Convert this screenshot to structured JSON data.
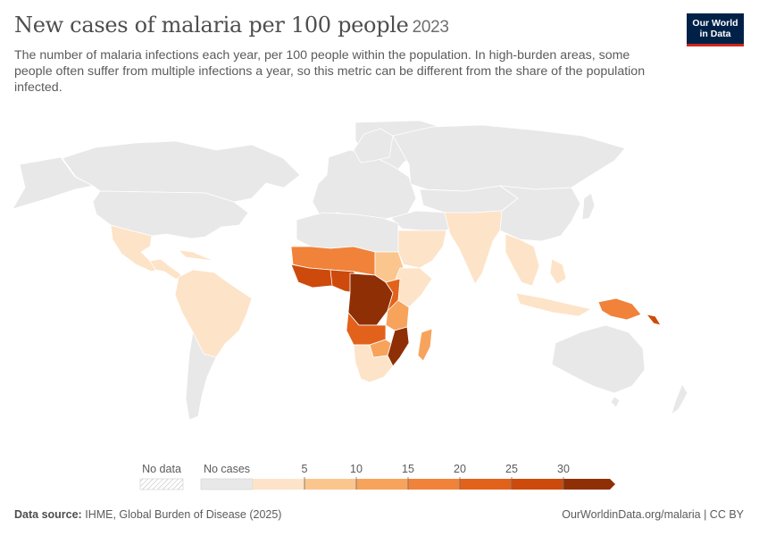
{
  "title": "New cases of malaria per 100 people",
  "year": "2023",
  "subtitle": "The number of malaria infections each year, per 100 people within the population. In high-burden areas, some people often suffer from multiple infections a year, so this metric can be different from the share of the population infected.",
  "logo": {
    "line1": "Our World",
    "line2": "in Data",
    "bg_color": "#002147",
    "accent_color": "#ce261e"
  },
  "legend": {
    "no_data_label": "No data",
    "no_cases_label": "No cases",
    "ticks": [
      "5",
      "10",
      "15",
      "20",
      "25",
      "30"
    ],
    "colors": [
      "#e8e8e8",
      "#fde3c8",
      "#fbc58e",
      "#f7a35c",
      "#f0823a",
      "#e2621b",
      "#cd4a0c",
      "#8f2f05"
    ]
  },
  "footer": {
    "source_label": "Data source:",
    "source_text": "IHME, Global Burden of Disease (2025)",
    "right_text": "OurWorldinData.org/malaria | CC BY"
  },
  "chart_data": {
    "type": "choropleth",
    "metric": "New cases of malaria per 100 people",
    "year": 2023,
    "scale_bins": [
      0,
      5,
      10,
      15,
      20,
      25,
      30
    ],
    "regions": [
      {
        "name": "Central Africa (DRC region)",
        "bin": "30+"
      },
      {
        "name": "Mozambique",
        "bin": "30+"
      },
      {
        "name": "Coastal West Africa",
        "bin": "25-30"
      },
      {
        "name": "Nigeria",
        "bin": "25-30"
      },
      {
        "name": "Sahel West Africa",
        "bin": "20-25"
      },
      {
        "name": "Angola / Zambia",
        "bin": "20-25"
      },
      {
        "name": "Uganda / Burundi / Rwanda",
        "bin": "20-25"
      },
      {
        "name": "Papua New Guinea",
        "bin": "20-25"
      },
      {
        "name": "Madagascar",
        "bin": "15-20"
      },
      {
        "name": "Tanzania",
        "bin": "15-20"
      },
      {
        "name": "Malawi / Zimbabwe",
        "bin": "10-15"
      },
      {
        "name": "Ethiopia / Kenya / Somalia",
        "bin": "5-10"
      },
      {
        "name": "Sudan",
        "bin": "5-10"
      },
      {
        "name": "South Asia",
        "bin": "0-5"
      },
      {
        "name": "Southeast Asia",
        "bin": "0-5"
      },
      {
        "name": "Arabian Peninsula",
        "bin": "0-5"
      },
      {
        "name": "Central America",
        "bin": "0-5"
      },
      {
        "name": "Northern South America",
        "bin": "0-5"
      },
      {
        "name": "Southern Africa (Namibia, Botswana)",
        "bin": "0-5"
      },
      {
        "name": "North America",
        "bin": "No cases"
      },
      {
        "name": "Europe",
        "bin": "No cases"
      },
      {
        "name": "Russia / Central Asia",
        "bin": "No cases"
      },
      {
        "name": "China / Japan / Korea",
        "bin": "No cases"
      },
      {
        "name": "Australia",
        "bin": "No cases"
      },
      {
        "name": "North Africa",
        "bin": "No cases"
      },
      {
        "name": "Southern South America",
        "bin": "No cases"
      },
      {
        "name": "Greenland",
        "bin": "No cases"
      }
    ]
  }
}
